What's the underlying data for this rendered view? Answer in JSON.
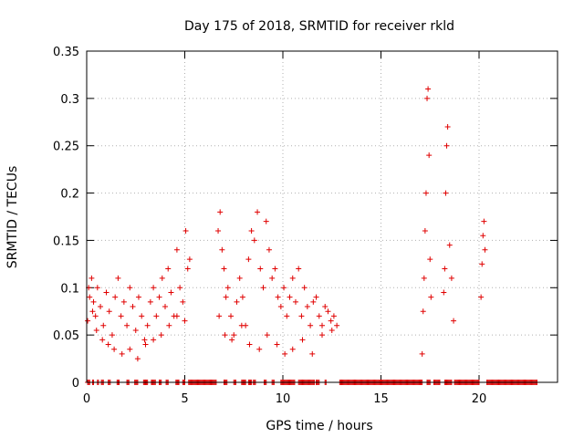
{
  "chart_data": {
    "type": "scatter",
    "title": "Day 175 of 2018, SRMTID for receiver rkld",
    "xlabel": "GPS time / hours",
    "ylabel": "SRMTID / TECUs",
    "xlim": [
      0,
      24
    ],
    "ylim": [
      0,
      0.35
    ],
    "grid": true,
    "marker": "+",
    "color": "#e00000",
    "x_ticks": [
      0,
      5,
      10,
      15,
      20
    ],
    "y_ticks": [
      0,
      0.05,
      0.1,
      0.15,
      0.2,
      0.25,
      0.3,
      0.35
    ],
    "x_tick_labels": [
      "0",
      "5",
      "10",
      "15",
      "20"
    ],
    "y_tick_labels": [
      "0",
      "0.05",
      "0.1",
      "0.15",
      "0.2",
      "0.25",
      "0.3",
      "0.35"
    ],
    "series": [
      {
        "name": "SRMTID",
        "x": [
          0.05,
          0.15,
          0.25,
          0.35,
          0.45,
          0.55,
          0.7,
          0.85,
          1.0,
          1.15,
          1.3,
          1.45,
          1.6,
          1.75,
          1.9,
          2.05,
          2.2,
          2.35,
          2.5,
          2.65,
          2.8,
          2.95,
          3.1,
          3.25,
          3.4,
          3.55,
          3.7,
          3.85,
          4.0,
          4.15,
          4.3,
          4.45,
          4.6,
          4.75,
          4.9,
          5.05,
          5.15,
          5.25,
          0.1,
          0.3,
          0.5,
          0.8,
          1.1,
          1.4,
          1.8,
          2.2,
          2.6,
          3.0,
          3.4,
          3.8,
          4.2,
          4.6,
          5.0,
          6.7,
          6.8,
          6.9,
          7.0,
          7.1,
          7.2,
          7.35,
          7.5,
          7.65,
          7.8,
          7.95,
          8.1,
          8.25,
          8.4,
          8.55,
          8.7,
          8.85,
          9.0,
          9.15,
          9.3,
          9.45,
          9.6,
          9.75,
          9.9,
          10.05,
          10.2,
          10.35,
          10.5,
          10.65,
          10.8,
          10.95,
          11.1,
          11.25,
          11.4,
          11.55,
          11.7,
          11.85,
          12.0,
          12.15,
          12.3,
          12.45,
          12.6,
          12.75,
          6.75,
          7.05,
          7.4,
          7.9,
          8.3,
          8.8,
          9.2,
          9.7,
          10.1,
          10.5,
          11.0,
          11.5,
          12.0,
          12.5,
          17.1,
          17.15,
          17.2,
          17.25,
          17.3,
          17.35,
          17.4,
          17.45,
          17.5,
          17.55,
          18.2,
          18.25,
          18.3,
          18.35,
          18.4,
          18.5,
          18.6,
          18.7,
          20.1,
          20.15,
          20.2,
          20.25,
          20.3
        ],
        "y": [
          0.065,
          0.09,
          0.11,
          0.085,
          0.07,
          0.1,
          0.08,
          0.06,
          0.095,
          0.075,
          0.05,
          0.09,
          0.11,
          0.07,
          0.085,
          0.06,
          0.1,
          0.08,
          0.055,
          0.09,
          0.07,
          0.045,
          0.06,
          0.085,
          0.1,
          0.07,
          0.09,
          0.11,
          0.08,
          0.12,
          0.095,
          0.07,
          0.14,
          0.1,
          0.085,
          0.16,
          0.12,
          0.13,
          0.1,
          0.075,
          0.055,
          0.045,
          0.04,
          0.035,
          0.03,
          0.035,
          0.025,
          0.04,
          0.045,
          0.05,
          0.06,
          0.07,
          0.065,
          0.16,
          0.18,
          0.14,
          0.12,
          0.09,
          0.1,
          0.07,
          0.05,
          0.085,
          0.11,
          0.09,
          0.06,
          0.13,
          0.16,
          0.15,
          0.18,
          0.12,
          0.1,
          0.17,
          0.14,
          0.11,
          0.12,
          0.09,
          0.08,
          0.1,
          0.07,
          0.09,
          0.11,
          0.085,
          0.12,
          0.07,
          0.1,
          0.08,
          0.06,
          0.085,
          0.09,
          0.07,
          0.06,
          0.08,
          0.075,
          0.065,
          0.07,
          0.06,
          0.07,
          0.05,
          0.045,
          0.06,
          0.04,
          0.035,
          0.05,
          0.04,
          0.03,
          0.035,
          0.045,
          0.03,
          0.05,
          0.055,
          0.03,
          0.075,
          0.11,
          0.16,
          0.2,
          0.3,
          0.31,
          0.24,
          0.13,
          0.09,
          0.095,
          0.12,
          0.2,
          0.25,
          0.27,
          0.145,
          0.11,
          0.065,
          0.09,
          0.125,
          0.155,
          0.17,
          0.14
        ],
        "zero_segments": [
          [
            0.05,
            0.15
          ],
          [
            0.3,
            0.35
          ],
          [
            0.55,
            0.6
          ],
          [
            0.75,
            0.85
          ],
          [
            1.1,
            1.2
          ],
          [
            1.55,
            1.65
          ],
          [
            2.05,
            2.15
          ],
          [
            2.45,
            2.6
          ],
          [
            2.9,
            3.1
          ],
          [
            3.3,
            3.5
          ],
          [
            3.7,
            3.8
          ],
          [
            4.05,
            4.15
          ],
          [
            4.55,
            4.7
          ],
          [
            4.9,
            5.0
          ],
          [
            5.2,
            6.6
          ],
          [
            7.0,
            7.15
          ],
          [
            7.5,
            7.6
          ],
          [
            7.9,
            8.1
          ],
          [
            8.25,
            8.4
          ],
          [
            8.5,
            8.6
          ],
          [
            9.05,
            9.15
          ],
          [
            9.45,
            9.55
          ],
          [
            9.9,
            10.6
          ],
          [
            10.8,
            11.6
          ],
          [
            11.7,
            11.85
          ],
          [
            12.15,
            12.2
          ],
          [
            12.9,
            17.1
          ],
          [
            17.35,
            17.5
          ],
          [
            17.7,
            18.0
          ],
          [
            18.25,
            18.6
          ],
          [
            18.75,
            20.0
          ],
          [
            20.4,
            22.95
          ]
        ]
      }
    ]
  }
}
